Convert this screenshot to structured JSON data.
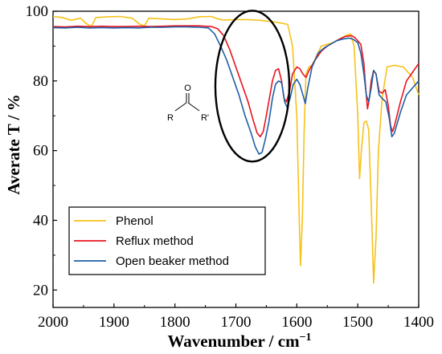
{
  "chart_data": {
    "type": "line",
    "xlabel": "Wavenumber / cm",
    "xlabel_sup": "−1",
    "ylabel": "Averate T / %",
    "xlim": [
      2000,
      1400
    ],
    "ylim": [
      15,
      100
    ],
    "x_reversed": true,
    "x_ticks": [
      2000,
      1900,
      1800,
      1700,
      1600,
      1500,
      1400
    ],
    "y_ticks": [
      20,
      40,
      60,
      80,
      100
    ],
    "grid": false,
    "legend_position": "bottom-left",
    "series": [
      {
        "name": "Phenol",
        "color": "#f7c21a",
        "points": [
          [
            2000,
            98.5
          ],
          [
            1985,
            98.2
          ],
          [
            1970,
            97.4
          ],
          [
            1955,
            98.0
          ],
          [
            1945,
            96.4
          ],
          [
            1937,
            95.6
          ],
          [
            1930,
            98.2
          ],
          [
            1910,
            98.4
          ],
          [
            1890,
            98.5
          ],
          [
            1870,
            98.0
          ],
          [
            1858,
            96.3
          ],
          [
            1850,
            95.8
          ],
          [
            1843,
            98.0
          ],
          [
            1820,
            97.8
          ],
          [
            1800,
            97.6
          ],
          [
            1780,
            97.8
          ],
          [
            1760,
            98.4
          ],
          [
            1740,
            98.5
          ],
          [
            1730,
            97.8
          ],
          [
            1720,
            97.5
          ],
          [
            1700,
            97.6
          ],
          [
            1680,
            97.6
          ],
          [
            1660,
            97.4
          ],
          [
            1640,
            97.0
          ],
          [
            1625,
            96.6
          ],
          [
            1615,
            96.2
          ],
          [
            1607,
            90.0
          ],
          [
            1600,
            70.0
          ],
          [
            1596,
            40.0
          ],
          [
            1594,
            27.0
          ],
          [
            1591,
            40.0
          ],
          [
            1588,
            65.0
          ],
          [
            1585,
            82.0
          ],
          [
            1580,
            84.0
          ],
          [
            1575,
            84.5
          ],
          [
            1568,
            87.0
          ],
          [
            1560,
            90.0
          ],
          [
            1550,
            90.5
          ],
          [
            1540,
            91.0
          ],
          [
            1530,
            92.0
          ],
          [
            1520,
            93.0
          ],
          [
            1512,
            93.5
          ],
          [
            1506,
            90.0
          ],
          [
            1500,
            70.0
          ],
          [
            1497,
            52.0
          ],
          [
            1494,
            60.0
          ],
          [
            1490,
            68.0
          ],
          [
            1486,
            68.5
          ],
          [
            1482,
            66.0
          ],
          [
            1478,
            45.0
          ],
          [
            1474,
            22.0
          ],
          [
            1470,
            35.0
          ],
          [
            1466,
            60.0
          ],
          [
            1460,
            75.0
          ],
          [
            1452,
            84.0
          ],
          [
            1440,
            84.5
          ],
          [
            1425,
            84.0
          ],
          [
            1410,
            81.0
          ],
          [
            1400,
            76.0
          ]
        ]
      },
      {
        "name": "Reflux method",
        "color": "#e8141e",
        "points": [
          [
            2000,
            95.6
          ],
          [
            1980,
            95.5
          ],
          [
            1960,
            95.7
          ],
          [
            1940,
            95.6
          ],
          [
            1920,
            95.7
          ],
          [
            1900,
            95.6
          ],
          [
            1880,
            95.6
          ],
          [
            1860,
            95.7
          ],
          [
            1840,
            95.6
          ],
          [
            1820,
            95.7
          ],
          [
            1800,
            95.8
          ],
          [
            1780,
            95.8
          ],
          [
            1760,
            95.8
          ],
          [
            1740,
            95.6
          ],
          [
            1730,
            95.0
          ],
          [
            1720,
            93.0
          ],
          [
            1710,
            89.0
          ],
          [
            1700,
            84.0
          ],
          [
            1690,
            79.0
          ],
          [
            1680,
            74.0
          ],
          [
            1672,
            69.0
          ],
          [
            1665,
            65.0
          ],
          [
            1660,
            64.0
          ],
          [
            1655,
            65.5
          ],
          [
            1650,
            70.0
          ],
          [
            1645,
            75.0
          ],
          [
            1640,
            80.0
          ],
          [
            1635,
            83.0
          ],
          [
            1630,
            83.5
          ],
          [
            1625,
            80.0
          ],
          [
            1621,
            75.0
          ],
          [
            1617,
            74.0
          ],
          [
            1612,
            77.0
          ],
          [
            1607,
            82.0
          ],
          [
            1600,
            84.0
          ],
          [
            1595,
            83.5
          ],
          [
            1590,
            82.0
          ],
          [
            1585,
            81.0
          ],
          [
            1580,
            83.0
          ],
          [
            1570,
            86.0
          ],
          [
            1560,
            88.5
          ],
          [
            1550,
            90.0
          ],
          [
            1540,
            91.0
          ],
          [
            1530,
            92.0
          ],
          [
            1520,
            92.8
          ],
          [
            1510,
            93.0
          ],
          [
            1505,
            92.5
          ],
          [
            1500,
            91.5
          ],
          [
            1495,
            90.5
          ],
          [
            1490,
            85.0
          ],
          [
            1487,
            78.0
          ],
          [
            1484,
            72.0
          ],
          [
            1481,
            75.0
          ],
          [
            1478,
            80.0
          ],
          [
            1474,
            83.0
          ],
          [
            1470,
            82.0
          ],
          [
            1465,
            77.0
          ],
          [
            1460,
            76.5
          ],
          [
            1455,
            77.5
          ],
          [
            1450,
            73.0
          ],
          [
            1446,
            67.0
          ],
          [
            1443,
            65.5
          ],
          [
            1440,
            67.0
          ],
          [
            1430,
            74.0
          ],
          [
            1420,
            80.0
          ],
          [
            1410,
            82.5
          ],
          [
            1400,
            85.0
          ]
        ]
      },
      {
        "name": "Open beaker method",
        "color": "#1f5fa8",
        "points": [
          [
            2000,
            95.3
          ],
          [
            1980,
            95.2
          ],
          [
            1960,
            95.4
          ],
          [
            1940,
            95.2
          ],
          [
            1920,
            95.3
          ],
          [
            1900,
            95.2
          ],
          [
            1880,
            95.3
          ],
          [
            1860,
            95.2
          ],
          [
            1840,
            95.4
          ],
          [
            1820,
            95.4
          ],
          [
            1800,
            95.5
          ],
          [
            1780,
            95.5
          ],
          [
            1760,
            95.4
          ],
          [
            1745,
            95.2
          ],
          [
            1735,
            93.5
          ],
          [
            1725,
            90.0
          ],
          [
            1715,
            86.0
          ],
          [
            1705,
            81.0
          ],
          [
            1695,
            76.0
          ],
          [
            1685,
            70.0
          ],
          [
            1675,
            65.0
          ],
          [
            1668,
            61.0
          ],
          [
            1662,
            59.0
          ],
          [
            1657,
            59.5
          ],
          [
            1652,
            63.0
          ],
          [
            1646,
            68.0
          ],
          [
            1640,
            75.0
          ],
          [
            1635,
            79.0
          ],
          [
            1630,
            80.0
          ],
          [
            1625,
            79.5
          ],
          [
            1620,
            74.0
          ],
          [
            1616,
            72.5
          ],
          [
            1611,
            75.0
          ],
          [
            1606,
            79.0
          ],
          [
            1600,
            80.5
          ],
          [
            1595,
            79.0
          ],
          [
            1590,
            76.0
          ],
          [
            1586,
            73.5
          ],
          [
            1582,
            78.0
          ],
          [
            1575,
            84.0
          ],
          [
            1565,
            88.0
          ],
          [
            1555,
            89.5
          ],
          [
            1545,
            90.5
          ],
          [
            1535,
            91.5
          ],
          [
            1525,
            92.0
          ],
          [
            1515,
            92.3
          ],
          [
            1508,
            92.0
          ],
          [
            1500,
            91.0
          ],
          [
            1495,
            88.0
          ],
          [
            1490,
            82.0
          ],
          [
            1486,
            76.0
          ],
          [
            1482,
            74.0
          ],
          [
            1478,
            78.0
          ],
          [
            1474,
            83.0
          ],
          [
            1470,
            82.0
          ],
          [
            1465,
            76.0
          ],
          [
            1460,
            75.0
          ],
          [
            1454,
            74.0
          ],
          [
            1448,
            69.0
          ],
          [
            1444,
            64.0
          ],
          [
            1440,
            65.0
          ],
          [
            1430,
            71.0
          ],
          [
            1420,
            76.0
          ],
          [
            1410,
            78.0
          ],
          [
            1400,
            80.0
          ]
        ]
      }
    ],
    "annotation": {
      "type": "ellipse",
      "center": [
        1673,
        78.5
      ],
      "shape": "ketone-structure",
      "structure_labels": {
        "oxygen": "O",
        "left": "R",
        "right": "R'"
      }
    }
  }
}
